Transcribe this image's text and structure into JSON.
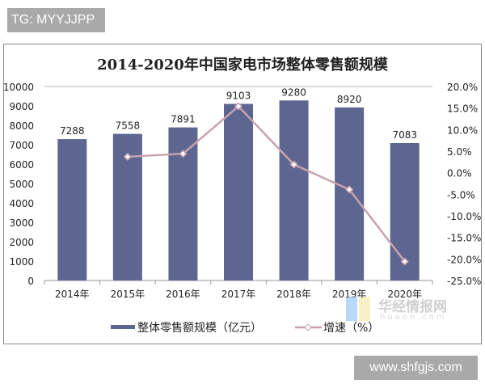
{
  "watermarks": {
    "tag": "TG: MYYJJPP",
    "site": "www.shfgjs.com",
    "logo_cn": "华经情报网",
    "logo_en": "huaon.com"
  },
  "chart_data": {
    "type": "bar+line",
    "title": "2014-2020年中国家电市场整体零售额规模",
    "categories": [
      "2014年",
      "2015年",
      "2016年",
      "2017年",
      "2018年",
      "2019年",
      "2020年"
    ],
    "series": [
      {
        "name": "整体零售额规模（亿元）",
        "type": "bar",
        "axis": "left",
        "color": "#5c6690",
        "values": [
          7288,
          7558,
          7891,
          9103,
          9280,
          8920,
          7083
        ],
        "labels": [
          "7288",
          "7558",
          "7891",
          "9103",
          "9280",
          "8920",
          "7083"
        ]
      },
      {
        "name": "增速（%）",
        "type": "line",
        "axis": "right",
        "color": "#c8a2ad",
        "values": [
          null,
          3.7,
          4.4,
          15.4,
          1.9,
          -3.9,
          -20.6
        ]
      }
    ],
    "left_axis": {
      "ylim": [
        0,
        10000
      ],
      "ticks": [
        "0",
        "1000",
        "2000",
        "3000",
        "4000",
        "5000",
        "6000",
        "7000",
        "8000",
        "9000",
        "10000"
      ]
    },
    "right_axis": {
      "ylim": [
        -25,
        20
      ],
      "ticks": [
        "-25.0%",
        "-20.0%",
        "-15.0%",
        "-10.0%",
        "-5.0%",
        "0.0%",
        "5.0%",
        "10.0%",
        "15.0%",
        "20.0%"
      ]
    },
    "grid": false,
    "legend": "bottom"
  }
}
